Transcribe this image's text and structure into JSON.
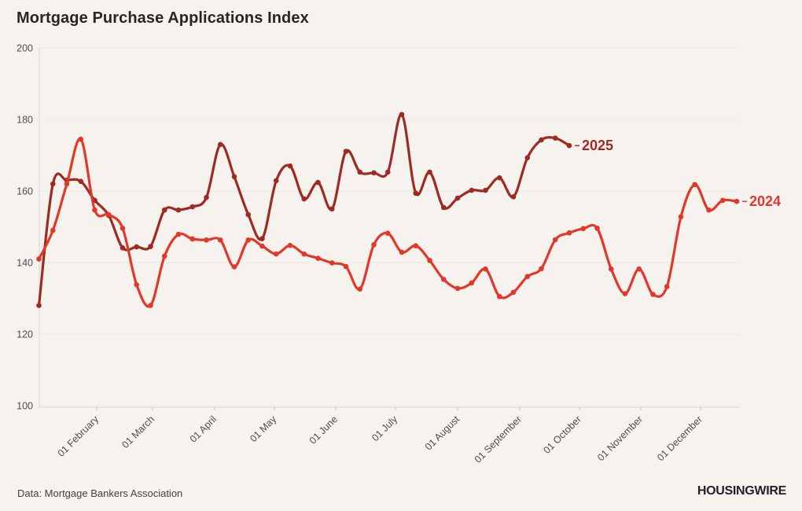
{
  "page": {
    "title": "Mortgage Purchase Applications Index",
    "source_note": "Data: Mortgage Bankers Association",
    "brand": "HOUSINGWIRE"
  },
  "chart_data": {
    "type": "line",
    "title": "Mortgage Purchase Applications Index",
    "xlabel": "",
    "ylabel": "",
    "ylim": [
      100,
      200
    ],
    "yticks": [
      200,
      180,
      160,
      140,
      120,
      100
    ],
    "x_tick_labels": [
      "01 February",
      "01 March",
      "01 April",
      "01 May",
      "01 June",
      "01 July",
      "01 August",
      "01 September",
      "01 October",
      "01 November",
      "01 December"
    ],
    "grid": true,
    "legend_position": "end-of-line",
    "colors": {
      "background": "#f6f3ee",
      "gridline": "#ebe8e2",
      "axis": "#d9d6d0",
      "tick": "#c9c6c0",
      "axis_text": "#4f4d49",
      "series_2025": "#9e2a23",
      "series_2024": "#e2382c"
    },
    "series": [
      {
        "name": "2025",
        "color": "#9e2a23",
        "cadence": "weekly",
        "values": [
          128,
          162,
          163,
          162.7,
          157.4,
          153.2,
          144.1,
          144.4,
          144.5,
          154.7,
          154.7,
          155.6,
          158.2,
          173,
          164,
          153.4,
          146.7,
          162.9,
          167,
          157.8,
          162.4,
          155,
          171.1,
          165.3,
          165.1,
          165.3,
          181.4,
          159.4,
          165.3,
          155.4,
          158,
          160.2,
          160.2,
          163.7,
          158.4,
          169.3,
          174.3,
          174.8,
          172.7
        ]
      },
      {
        "name": "2024",
        "color": "#e2382c",
        "cadence": "weekly",
        "values": [
          141,
          149,
          162,
          174.5,
          154.7,
          153.4,
          149.6,
          133.8,
          128,
          141.8,
          147.9,
          146.6,
          146.3,
          146.3,
          138.8,
          146.3,
          144.6,
          142.4,
          144.8,
          142.4,
          141.2,
          139.9,
          138.9,
          132.6,
          145,
          148.2,
          142.9,
          144.7,
          140.6,
          135.3,
          132.8,
          134.3,
          138.2,
          130.5,
          131.7,
          136.1,
          138.3,
          146.4,
          148.3,
          149.5,
          149.6,
          138.2,
          131.3,
          138.2,
          131.1,
          133.3,
          152.8,
          161.8,
          154.7,
          157.4,
          157.1
        ]
      }
    ]
  }
}
